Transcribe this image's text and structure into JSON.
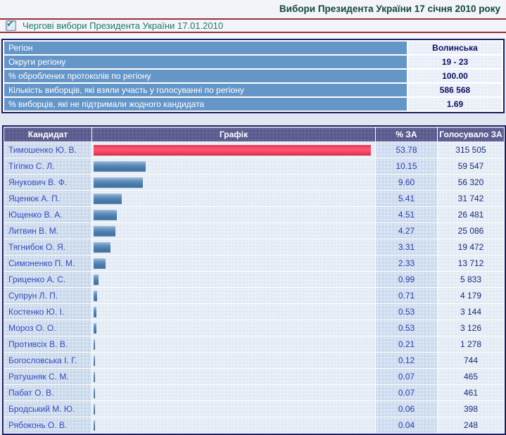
{
  "header": {
    "title": "Вибори Президента України 17 січня 2010 року",
    "election_label": "Чергові вибори Президента України 17.01.2010",
    "checkbox_checked": true
  },
  "region_summary": {
    "rows": [
      {
        "label": "Регіон",
        "value": "Волинська"
      },
      {
        "label": "Округи регіону",
        "value": "19 - 23"
      },
      {
        "label": "% оброблених протоколів по регіону",
        "value": "100.00"
      },
      {
        "label": "Кількість виборців, які взяли участь у голосуванні по регіону",
        "value": "586 568"
      },
      {
        "label": "% виборців, які не підтримали жодного кандидата",
        "value": "1.69"
      }
    ]
  },
  "results": {
    "headers": [
      "Кандидат",
      "Графік",
      "% ЗА",
      "Голосувало ЗА"
    ]
  },
  "chart_data": {
    "type": "bar",
    "orientation": "horizontal",
    "title": "Графік",
    "categories": [
      "Тимошенко Ю. В.",
      "Тігіпко С. Л.",
      "Янукович В. Ф.",
      "Яценюк А. П.",
      "Ющенко В. А.",
      "Литвин В. М.",
      "Тягнибок О. Я.",
      "Симоненко П. М.",
      "Гриценко А. С.",
      "Супрун Л. П.",
      "Костенко Ю. І.",
      "Мороз О. О.",
      "Противсіх В. В.",
      "Богословська І. Г.",
      "Ратушняк С. М.",
      "Пабат О. В.",
      "Бродський М. Ю.",
      "Рябоконь О. В."
    ],
    "values": [
      53.78,
      10.15,
      9.6,
      5.41,
      4.51,
      4.27,
      3.31,
      2.33,
      0.99,
      0.71,
      0.53,
      0.53,
      0.21,
      0.12,
      0.07,
      0.07,
      0.06,
      0.04
    ],
    "percent_labels": [
      "53.78",
      "10.15",
      "9.60",
      "5.41",
      "4.51",
      "4.27",
      "3.31",
      "2.33",
      "0.99",
      "0.71",
      "0.53",
      "0.53",
      "0.21",
      "0.12",
      "0.07",
      "0.07",
      "0.06",
      "0.04"
    ],
    "votes_display": [
      "315 505",
      "59 547",
      "56 320",
      "31 742",
      "26 481",
      "25 086",
      "19 472",
      "13 712",
      "5 833",
      "4 179",
      "3 144",
      "3 126",
      "1 278",
      "744",
      "465",
      "461",
      "398",
      "248"
    ],
    "xlim": [
      0,
      53.78
    ],
    "leader_bar_color": "#ef3f5c",
    "bar_color": "#5585b5"
  },
  "colors": {
    "maroon_rule": "#993333",
    "results_header_bg": "#5b5b8f",
    "region_label_bg": "#6596c8",
    "title_green": "#14483a",
    "label_teal": "#1d7a68"
  }
}
